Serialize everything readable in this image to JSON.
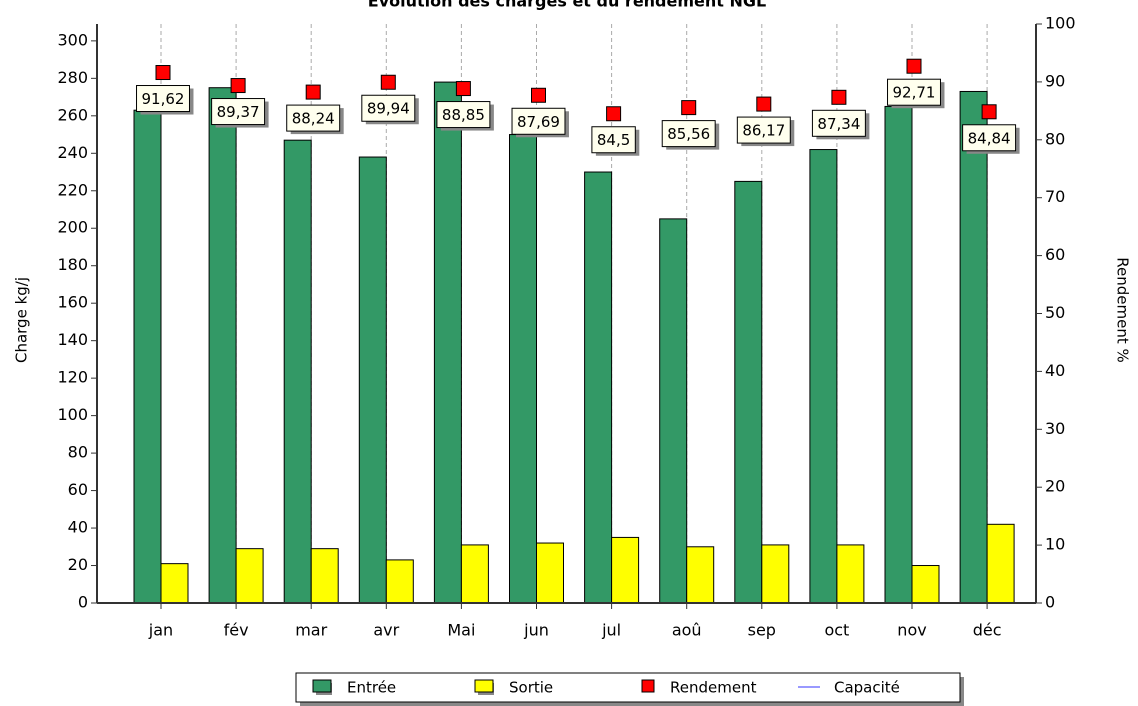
{
  "chart_data": {
    "type": "bar",
    "title": "Evolution des charges et du rendement NGL",
    "y_label": "Charge kg/j",
    "y2_label": "Rendement %",
    "categories": [
      "jan",
      "fév",
      "mar",
      "avr",
      "Mai",
      "jun",
      "jul",
      "aoû",
      "sep",
      "oct",
      "nov",
      "déc"
    ],
    "series": [
      {
        "name": "Entrée",
        "color": "#339966",
        "type": "bar",
        "values": [
          263,
          275,
          247,
          238,
          278,
          250,
          230,
          205,
          225,
          242,
          265,
          273
        ]
      },
      {
        "name": "Sortie",
        "color": "#ffff00",
        "type": "bar",
        "values": [
          21,
          29,
          29,
          23,
          31,
          32,
          35,
          30,
          31,
          31,
          20,
          42
        ]
      },
      {
        "name": "Rendement",
        "color": "#ff0000",
        "type": "scatter",
        "axis": "y2",
        "values": [
          91.62,
          89.37,
          88.24,
          89.94,
          88.85,
          87.69,
          84.5,
          85.56,
          86.17,
          87.34,
          92.71,
          84.84
        ],
        "value_labels": [
          "91,62",
          "89,37",
          "88,24",
          "89,94",
          "88,85",
          "87,69",
          "84,5",
          "85,56",
          "86,17",
          "87,34",
          "92,71",
          "84,84"
        ]
      },
      {
        "name": "Capacité",
        "color": "#9999ff",
        "type": "line",
        "values": [
          null,
          null,
          null,
          null,
          null,
          null,
          null,
          null,
          null,
          null,
          null,
          null
        ]
      }
    ],
    "ylim": [
      0,
      309
    ],
    "yticks": [
      0,
      20,
      40,
      60,
      80,
      100,
      120,
      140,
      160,
      180,
      200,
      220,
      240,
      260,
      280,
      300
    ],
    "y2lim": [
      0,
      100
    ],
    "y2ticks": [
      0,
      10,
      20,
      30,
      40,
      50,
      60,
      70,
      80,
      90,
      100
    ],
    "grid": true,
    "legend": "bottom"
  }
}
